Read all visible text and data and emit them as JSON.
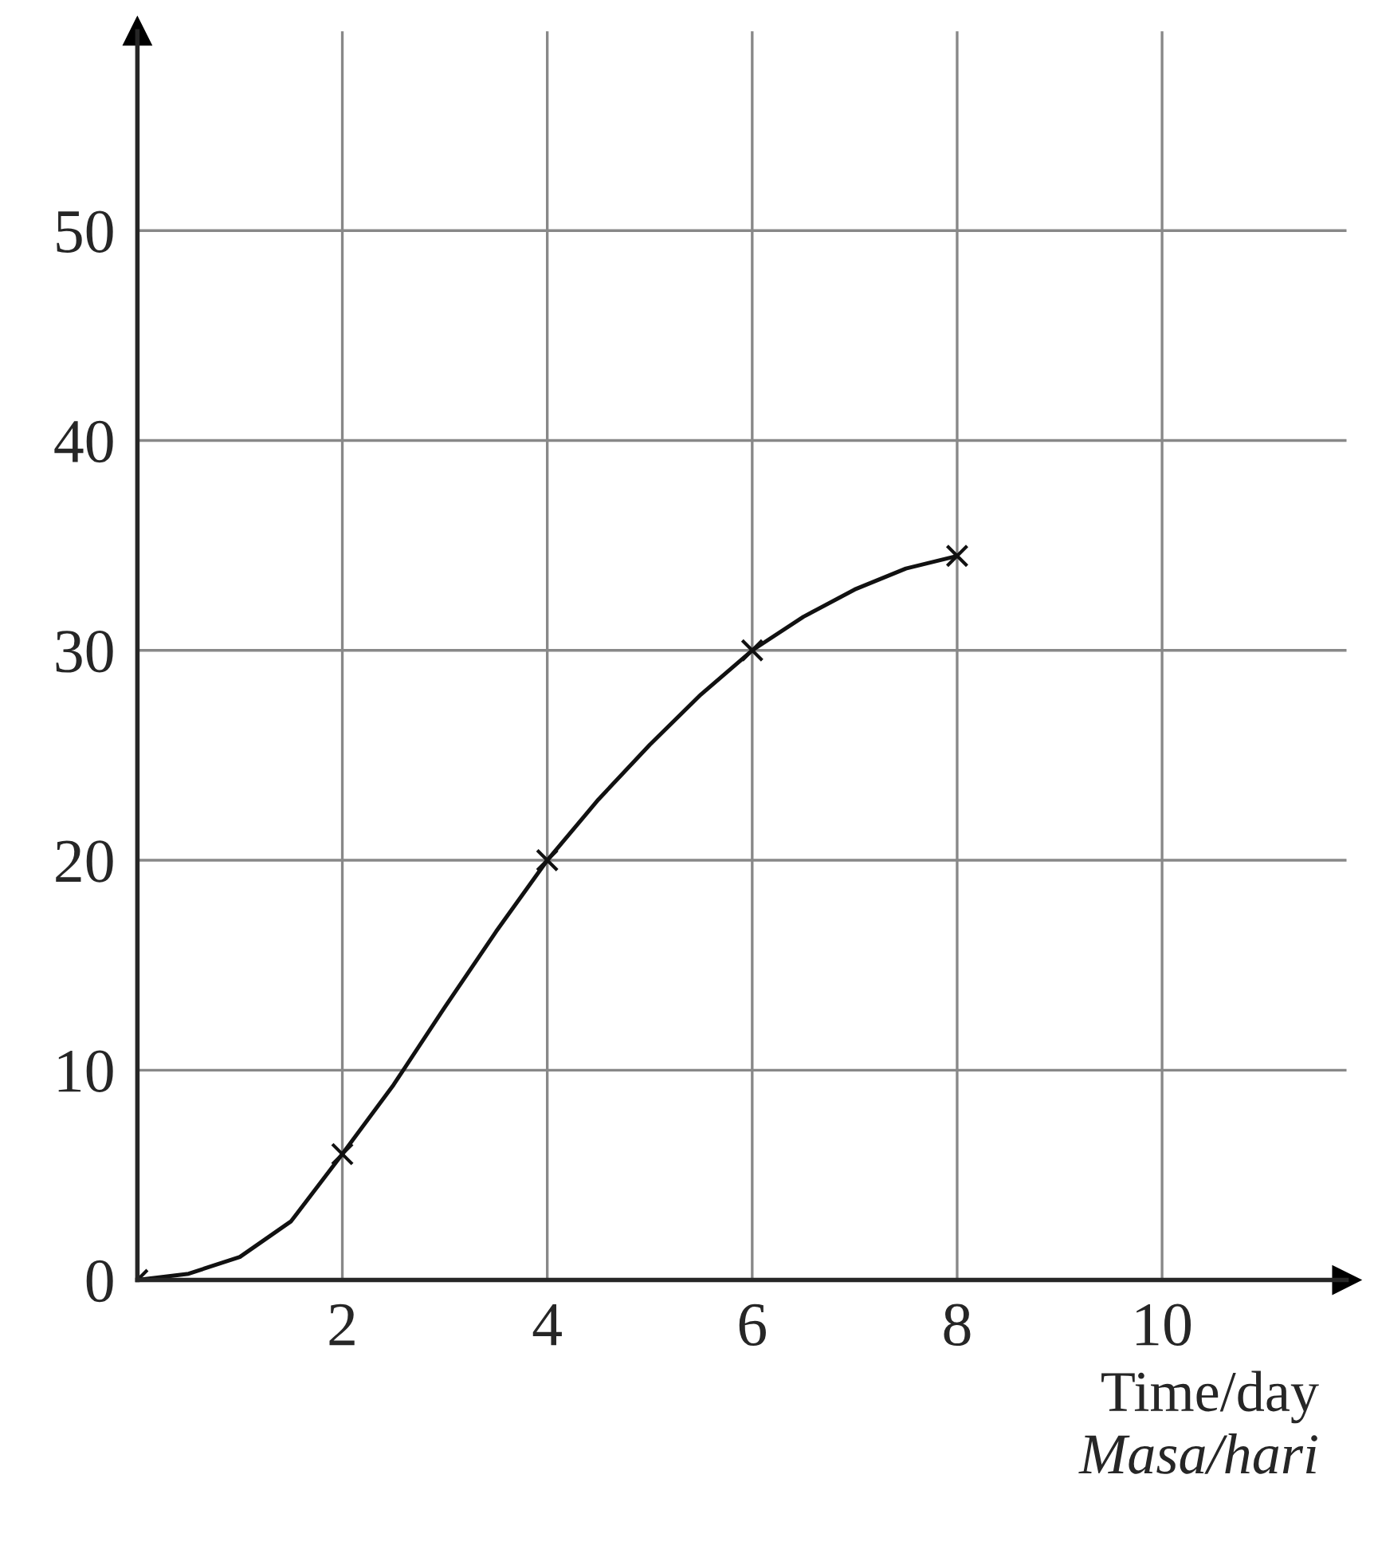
{
  "chart_data": {
    "type": "line",
    "xlabel": "Time/day\nMasa/hari",
    "x": [
      0,
      2,
      4,
      6,
      8
    ],
    "series": [
      {
        "color": "#111111",
        "x": [
          0,
          0.5,
          1,
          1.5,
          2,
          2.5,
          3,
          3.5,
          4,
          4.5,
          5,
          5.5,
          6,
          6.5,
          7,
          7.5,
          8
        ],
        "values": [
          0,
          0.3,
          1.1,
          2.8,
          6,
          9.3,
          13,
          16.6,
          20,
          22.9,
          25.5,
          27.9,
          30,
          31.6,
          32.9,
          33.9,
          34.5
        ],
        "line_style": "solid"
      },
      {
        "type": "scatter",
        "color": "#111111",
        "values": [
          0,
          6,
          20,
          30,
          34.5
        ],
        "marker": "cross"
      }
    ],
    "xlim": [
      0,
      11.8
    ],
    "ylim": [
      0,
      59.5
    ],
    "xticks": [
      2,
      4,
      6,
      8,
      10
    ],
    "yticks": [
      0,
      10,
      20,
      30,
      40,
      50
    ],
    "grid": true
  }
}
